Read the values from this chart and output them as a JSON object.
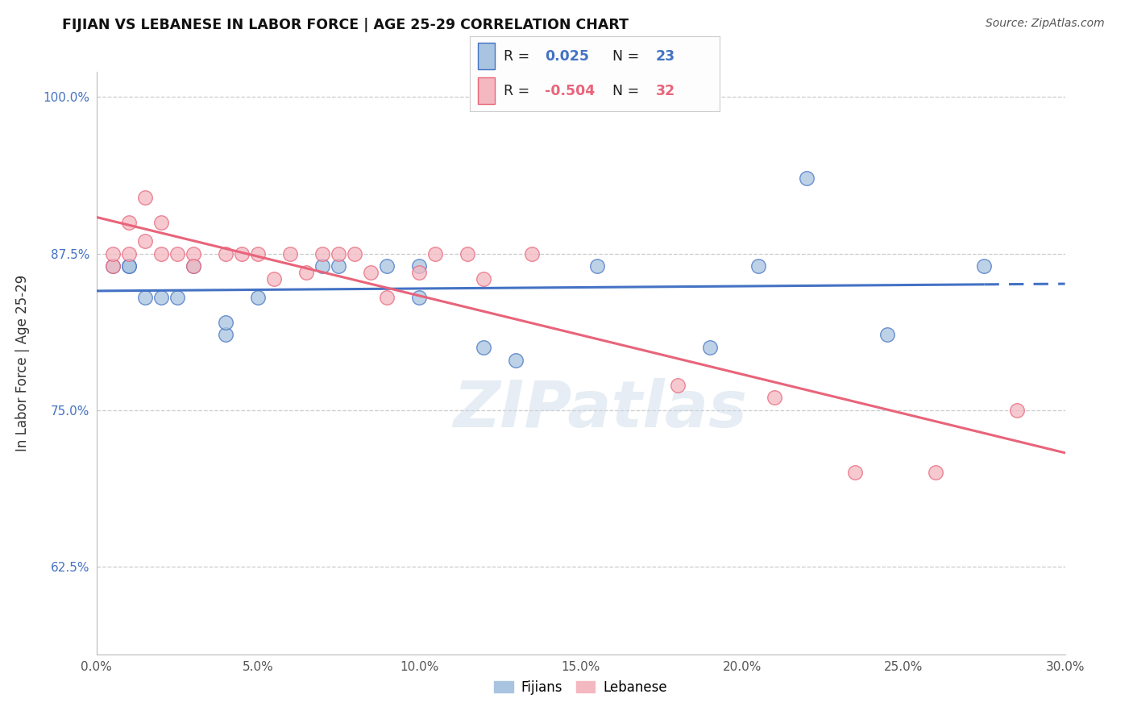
{
  "title": "FIJIAN VS LEBANESE IN LABOR FORCE | AGE 25-29 CORRELATION CHART",
  "source": "Source: ZipAtlas.com",
  "ylabel": "In Labor Force | Age 25-29",
  "xlim": [
    0.0,
    0.3
  ],
  "ylim": [
    0.555,
    1.02
  ],
  "xtick_labels": [
    "0.0%",
    "5.0%",
    "10.0%",
    "15.0%",
    "20.0%",
    "25.0%",
    "30.0%"
  ],
  "xtick_values": [
    0.0,
    0.05,
    0.1,
    0.15,
    0.2,
    0.25,
    0.3
  ],
  "ytick_labels": [
    "62.5%",
    "75.0%",
    "87.5%",
    "100.0%"
  ],
  "ytick_values": [
    0.625,
    0.75,
    0.875,
    1.0
  ],
  "fijian_color": "#a8c4e0",
  "lebanese_color": "#f4b8c1",
  "fijian_line_color": "#4472c4",
  "lebanese_line_color": "#e8647a",
  "R_fijian": 0.025,
  "N_fijian": 23,
  "R_lebanese": -0.504,
  "N_lebanese": 32,
  "fijian_x": [
    0.005,
    0.01,
    0.01,
    0.015,
    0.02,
    0.025,
    0.03,
    0.04,
    0.04,
    0.05,
    0.07,
    0.075,
    0.09,
    0.1,
    0.1,
    0.12,
    0.13,
    0.155,
    0.19,
    0.205,
    0.22,
    0.245,
    0.275
  ],
  "fijian_y": [
    0.865,
    0.865,
    0.865,
    0.84,
    0.84,
    0.84,
    0.865,
    0.81,
    0.82,
    0.84,
    0.865,
    0.865,
    0.865,
    0.865,
    0.84,
    0.8,
    0.79,
    0.865,
    0.8,
    0.865,
    0.935,
    0.81,
    0.865
  ],
  "lebanese_x": [
    0.005,
    0.005,
    0.01,
    0.01,
    0.015,
    0.015,
    0.02,
    0.02,
    0.025,
    0.03,
    0.03,
    0.04,
    0.045,
    0.05,
    0.055,
    0.06,
    0.065,
    0.07,
    0.075,
    0.08,
    0.085,
    0.09,
    0.1,
    0.105,
    0.115,
    0.12,
    0.135,
    0.18,
    0.21,
    0.235,
    0.26,
    0.285
  ],
  "lebanese_y": [
    0.865,
    0.875,
    0.875,
    0.9,
    0.885,
    0.92,
    0.875,
    0.9,
    0.875,
    0.875,
    0.865,
    0.875,
    0.875,
    0.875,
    0.855,
    0.875,
    0.86,
    0.875,
    0.875,
    0.875,
    0.86,
    0.84,
    0.86,
    0.875,
    0.875,
    0.855,
    0.875,
    0.77,
    0.76,
    0.7,
    0.7,
    0.75
  ],
  "background_color": "#ffffff",
  "watermark_text": "ZIPatlas",
  "watermark_color": "#c8d8e8",
  "watermark_alpha": 0.45,
  "fijian_trend_x0": 0.0,
  "fijian_trend_x_solid_end": 0.275,
  "fijian_trend_x1": 0.3,
  "lebanese_trend_x0": 0.0,
  "lebanese_trend_x1": 0.3
}
